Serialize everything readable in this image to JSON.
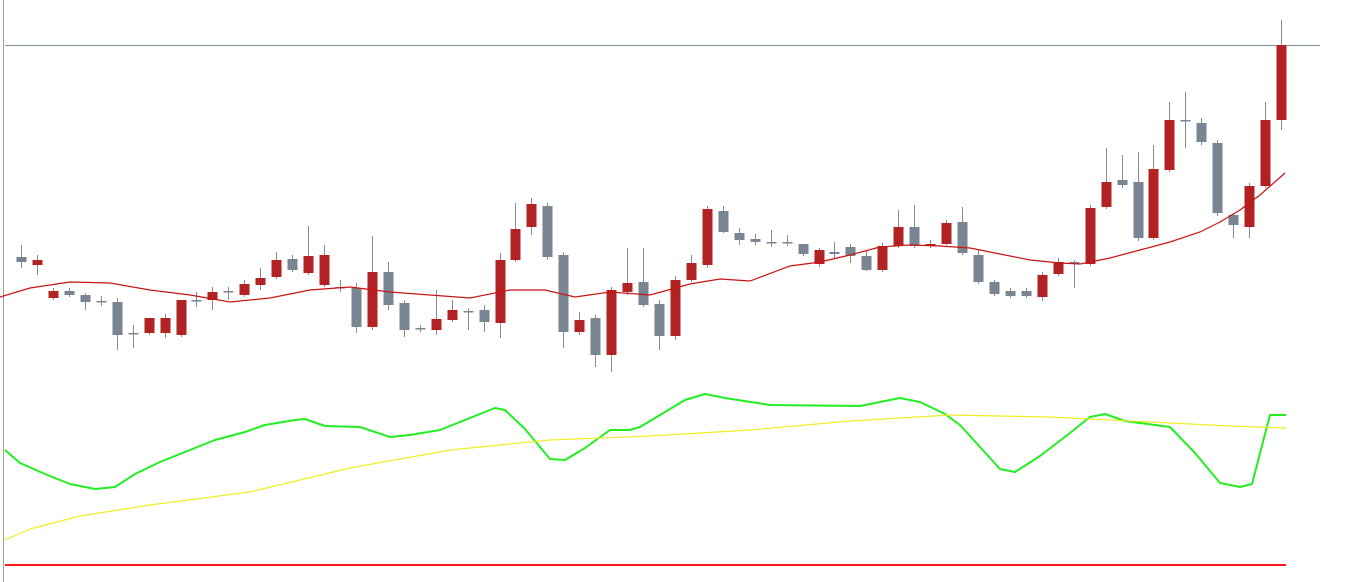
{
  "colors": {
    "background": "#ffffff",
    "frame": "#a0a0a0",
    "reference_line": "#7f8c9a",
    "bull_candle": "#b22222",
    "bear_candle": "#7a8594",
    "wick": "#8a8a8a",
    "price_ma": "#c81414",
    "oscillator": "#22ee22",
    "oscillator_signal": "#eeee22",
    "baseline": "#ff1a1a"
  },
  "chart_data": [
    {
      "type": "candlestick",
      "title": "",
      "xlabel": "",
      "ylabel": "",
      "grid": false,
      "legend": "none",
      "ylim": [
        0,
        582
      ],
      "reference_line": 45,
      "candles": [
        [
          257,
          262,
          245,
          268
        ],
        [
          265,
          260,
          255,
          275
        ],
        [
          298,
          291,
          288,
          300
        ],
        [
          291,
          295,
          288,
          297
        ],
        [
          295,
          302,
          293,
          310
        ],
        [
          301,
          301,
          296,
          306
        ],
        [
          302,
          335,
          298,
          350
        ],
        [
          333,
          333,
          325,
          348
        ],
        [
          333,
          318,
          318,
          335
        ],
        [
          333,
          318,
          314,
          338
        ],
        [
          335,
          300,
          300,
          337
        ],
        [
          300,
          300,
          292,
          307
        ],
        [
          300,
          292,
          287,
          310
        ],
        [
          291,
          291,
          287,
          300
        ],
        [
          295,
          284,
          280,
          297
        ],
        [
          285,
          278,
          268,
          290
        ],
        [
          277,
          260,
          252,
          279
        ],
        [
          259,
          270,
          255,
          272
        ],
        [
          273,
          256,
          226,
          275
        ],
        [
          285,
          255,
          245,
          287
        ],
        [
          287,
          287,
          280,
          292
        ],
        [
          288,
          327,
          283,
          333
        ],
        [
          327,
          272,
          236,
          330
        ],
        [
          272,
          305,
          262,
          310
        ],
        [
          303,
          330,
          300,
          337
        ],
        [
          328,
          328,
          325,
          332
        ],
        [
          330,
          319,
          290,
          335
        ],
        [
          320,
          310,
          300,
          322
        ],
        [
          311,
          311,
          308,
          330
        ],
        [
          310,
          322,
          305,
          332
        ],
        [
          323,
          260,
          253,
          338
        ],
        [
          260,
          229,
          203,
          262
        ],
        [
          227,
          204,
          198,
          235
        ],
        [
          206,
          257,
          203,
          260
        ],
        [
          255,
          332,
          252,
          348
        ],
        [
          332,
          320,
          312,
          335
        ],
        [
          318,
          355,
          315,
          367
        ],
        [
          355,
          290,
          287,
          372
        ],
        [
          292,
          283,
          248,
          295
        ],
        [
          282,
          305,
          248,
          307
        ],
        [
          304,
          336,
          300,
          350
        ],
        [
          336,
          280,
          276,
          340
        ],
        [
          280,
          263,
          255,
          282
        ],
        [
          265,
          209,
          206,
          268
        ],
        [
          211,
          232,
          206,
          233
        ],
        [
          233,
          240,
          228,
          245
        ],
        [
          239,
          242,
          234,
          245
        ],
        [
          242,
          242,
          230,
          247
        ],
        [
          242,
          242,
          235,
          246
        ],
        [
          244,
          254,
          244,
          256
        ],
        [
          264,
          250,
          248,
          267
        ],
        [
          252,
          254,
          242,
          258
        ],
        [
          247,
          256,
          244,
          263
        ],
        [
          256,
          270,
          250,
          271
        ],
        [
          270,
          246,
          243,
          272
        ],
        [
          246,
          227,
          210,
          248
        ],
        [
          227,
          246,
          205,
          248
        ],
        [
          246,
          244,
          240,
          248
        ],
        [
          244,
          223,
          220,
          245
        ],
        [
          222,
          253,
          207,
          255
        ],
        [
          255,
          282,
          250,
          284
        ],
        [
          282,
          294,
          280,
          296
        ],
        [
          291,
          296,
          288,
          298
        ],
        [
          291,
          296,
          288,
          298
        ],
        [
          297,
          275,
          272,
          301
        ],
        [
          274,
          262,
          258,
          276
        ],
        [
          262,
          262,
          260,
          288
        ],
        [
          264,
          208,
          205,
          266
        ],
        [
          207,
          182,
          148,
          209
        ],
        [
          180,
          185,
          155,
          188
        ],
        [
          182,
          238,
          152,
          241
        ],
        [
          238,
          169,
          145,
          240
        ],
        [
          170,
          120,
          102,
          172
        ],
        [
          120,
          120,
          92,
          148
        ],
        [
          123,
          142,
          118,
          145
        ],
        [
          143,
          213,
          140,
          216
        ],
        [
          215,
          225,
          213,
          238
        ],
        [
          227,
          186,
          183,
          238
        ],
        [
          186,
          120,
          102,
          188
        ],
        [
          120,
          45,
          20,
          130
        ]
      ],
      "moving_average": [
        [
          0,
          297
        ],
        [
          30,
          288
        ],
        [
          70,
          282
        ],
        [
          110,
          283
        ],
        [
          150,
          290
        ],
        [
          190,
          295
        ],
        [
          230,
          302
        ],
        [
          270,
          298
        ],
        [
          310,
          290
        ],
        [
          350,
          287
        ],
        [
          390,
          292
        ],
        [
          430,
          295
        ],
        [
          470,
          298
        ],
        [
          510,
          290
        ],
        [
          545,
          290
        ],
        [
          575,
          297
        ],
        [
          610,
          292
        ],
        [
          650,
          295
        ],
        [
          690,
          284
        ],
        [
          720,
          279
        ],
        [
          750,
          281
        ],
        [
          790,
          266
        ],
        [
          820,
          262
        ],
        [
          850,
          255
        ],
        [
          880,
          247
        ],
        [
          910,
          245
        ],
        [
          940,
          246
        ],
        [
          970,
          248
        ],
        [
          1000,
          254
        ],
        [
          1030,
          260
        ],
        [
          1060,
          263
        ],
        [
          1080,
          264
        ],
        [
          1110,
          258
        ],
        [
          1140,
          250
        ],
        [
          1170,
          242
        ],
        [
          1200,
          232
        ],
        [
          1220,
          222
        ],
        [
          1240,
          210
        ],
        [
          1260,
          195
        ],
        [
          1285,
          173
        ]
      ]
    },
    {
      "type": "line",
      "title": "",
      "xlabel": "",
      "ylabel": "",
      "grid": false,
      "legend": "none",
      "ylim": [
        0,
        582
      ],
      "baseline": 565,
      "series": [
        {
          "values": [
            [
              5,
              450
            ],
            [
              20,
              463
            ],
            [
              45,
              474
            ],
            [
              70,
              484
            ],
            [
              95,
              489
            ],
            [
              115,
              487
            ],
            [
              135,
              474
            ],
            [
              160,
              462
            ],
            [
              185,
              452
            ],
            [
              215,
              440
            ],
            [
              245,
              432
            ],
            [
              265,
              425
            ],
            [
              295,
              420
            ],
            [
              305,
              419
            ],
            [
              325,
              426
            ],
            [
              360,
              427
            ],
            [
              390,
              437
            ],
            [
              410,
              435
            ],
            [
              440,
              430
            ],
            [
              470,
              418
            ],
            [
              495,
              408
            ],
            [
              505,
              410
            ],
            [
              525,
              429
            ],
            [
              550,
              459
            ],
            [
              565,
              460
            ],
            [
              585,
              448
            ],
            [
              610,
              430
            ],
            [
              630,
              430
            ],
            [
              640,
              427
            ],
            [
              660,
              415
            ],
            [
              685,
              400
            ],
            [
              705,
              394
            ],
            [
              725,
              398
            ],
            [
              770,
              405
            ],
            [
              860,
              406
            ],
            [
              880,
              402
            ],
            [
              900,
              398
            ],
            [
              920,
              402
            ],
            [
              945,
              414
            ],
            [
              960,
              425
            ],
            [
              980,
              447
            ],
            [
              1000,
              469
            ],
            [
              1015,
              472
            ],
            [
              1040,
              456
            ],
            [
              1070,
              433
            ],
            [
              1090,
              417
            ],
            [
              1105,
              414
            ],
            [
              1125,
              421
            ],
            [
              1140,
              423
            ],
            [
              1170,
              427
            ],
            [
              1195,
              453
            ],
            [
              1220,
              483
            ],
            [
              1240,
              487
            ],
            [
              1252,
              484
            ],
            [
              1270,
              415
            ],
            [
              1286,
              415
            ]
          ]
        },
        {
          "values": [
            [
              5,
              540
            ],
            [
              30,
              529
            ],
            [
              80,
              516
            ],
            [
              150,
              505
            ],
            [
              250,
              492
            ],
            [
              350,
              468
            ],
            [
              450,
              450
            ],
            [
              550,
              440
            ],
            [
              650,
              436
            ],
            [
              750,
              430
            ],
            [
              850,
              421
            ],
            [
              950,
              415
            ],
            [
              1050,
              417
            ],
            [
              1150,
              422
            ],
            [
              1230,
              426
            ],
            [
              1286,
              428
            ]
          ]
        }
      ]
    }
  ]
}
